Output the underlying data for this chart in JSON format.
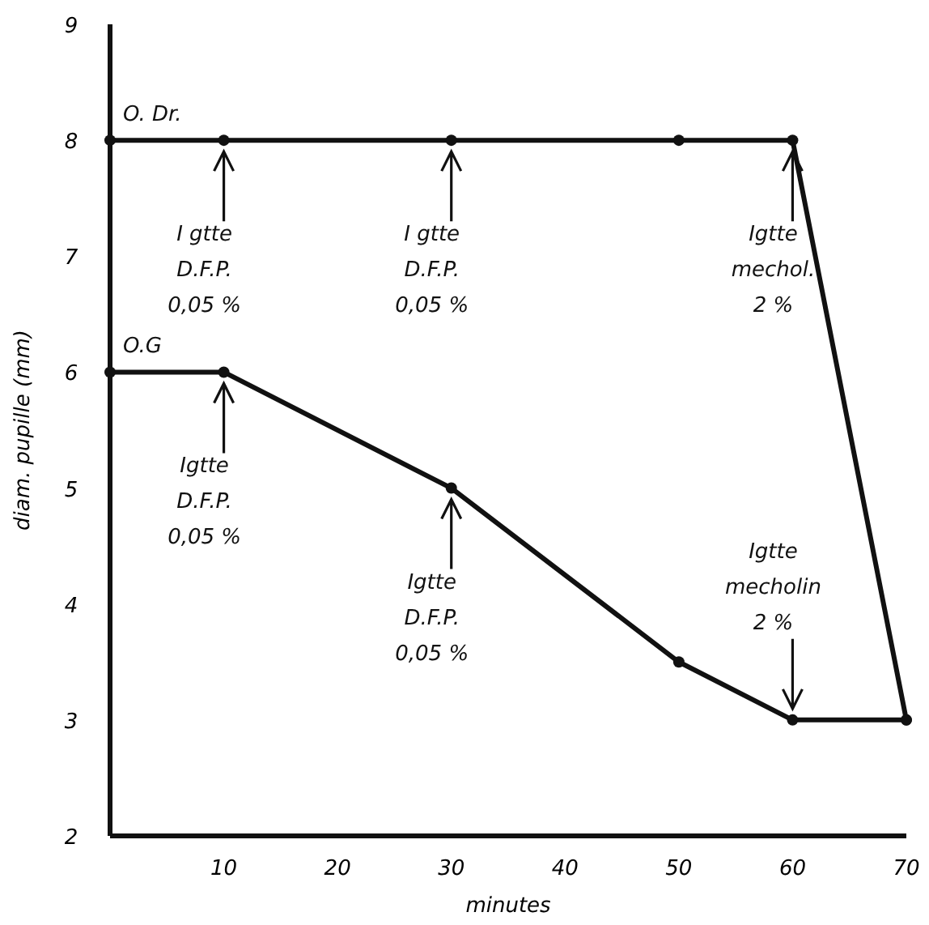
{
  "chart_data": {
    "type": "line",
    "xlabel": "minutes",
    "ylabel": "diam. pupille (mm)",
    "x": [
      0,
      10,
      30,
      50,
      60,
      70
    ],
    "series": [
      {
        "name": "O. Dr.",
        "color": "#111111",
        "values": [
          8,
          8,
          8,
          8,
          8,
          3
        ]
      },
      {
        "name": "O.G",
        "color": "#111111",
        "values": [
          6,
          6,
          5,
          3.5,
          3,
          3
        ]
      }
    ],
    "xlim": [
      0,
      70
    ],
    "xticks": [
      10,
      20,
      30,
      40,
      50,
      60,
      70
    ],
    "ylim": [
      2,
      9
    ],
    "yticks": [
      2,
      3,
      4,
      5,
      6,
      7,
      8,
      9
    ],
    "marker": "circle",
    "line_style": "solid",
    "grid": false,
    "annotations": [
      {
        "text": "I gtte\nD.F.P.\n0,05 %",
        "x": 10,
        "y": 8
      },
      {
        "text": "I gtte\nD.F.P.\n0,05 %",
        "x": 30,
        "y": 8
      },
      {
        "text": "Igtte\nmechol.\n2 %",
        "x": 60,
        "y": 8
      },
      {
        "text": "Igtte\nD.F.P.\n0,05 %",
        "x": 10,
        "y": 6
      },
      {
        "text": "Igtte\nD.F.P.\n0,05 %",
        "x": 30,
        "y": 5
      },
      {
        "text": "Igtte\nmecholin\n2 %",
        "x": 60,
        "y": 3
      }
    ]
  }
}
